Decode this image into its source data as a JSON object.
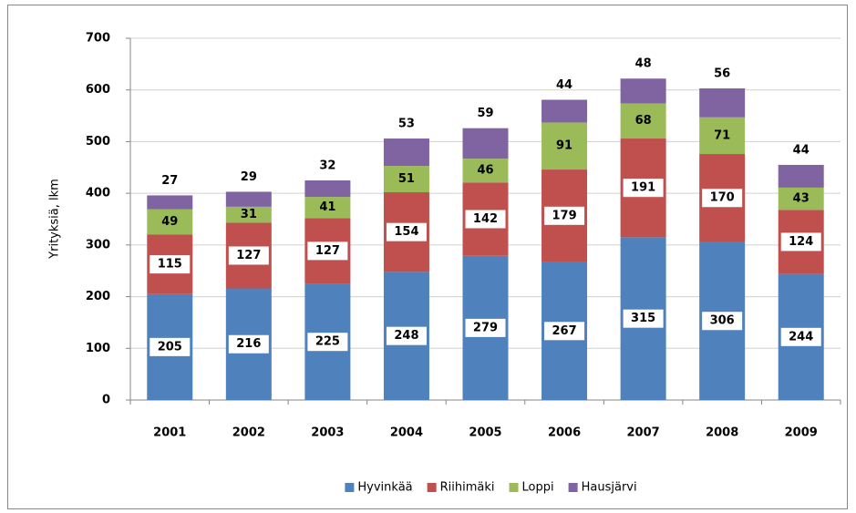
{
  "chart_data": {
    "type": "stacked_bar",
    "y_label": "Yrityksiä, lkm",
    "categories": [
      "2001",
      "2002",
      "2003",
      "2004",
      "2005",
      "2006",
      "2007",
      "2008",
      "2009"
    ],
    "series": [
      {
        "name": "Hyvinkää",
        "color": "#4f81bd",
        "values": [
          205,
          216,
          225,
          248,
          279,
          267,
          315,
          306,
          244
        ]
      },
      {
        "name": "Riihimäki",
        "color": "#c0504d",
        "values": [
          115,
          127,
          127,
          154,
          142,
          179,
          191,
          170,
          124
        ]
      },
      {
        "name": "Loppi",
        "color": "#9bbb59",
        "values": [
          49,
          31,
          41,
          51,
          46,
          91,
          68,
          71,
          43
        ]
      },
      {
        "name": "Hausjärvi",
        "color": "#8064a2",
        "values": [
          27,
          29,
          32,
          53,
          59,
          44,
          48,
          56,
          44
        ]
      }
    ],
    "ylim": [
      0,
      700
    ],
    "yticks": [
      0,
      100,
      200,
      300,
      400,
      500,
      600,
      700
    ],
    "grid": true,
    "legend": "bottom"
  }
}
